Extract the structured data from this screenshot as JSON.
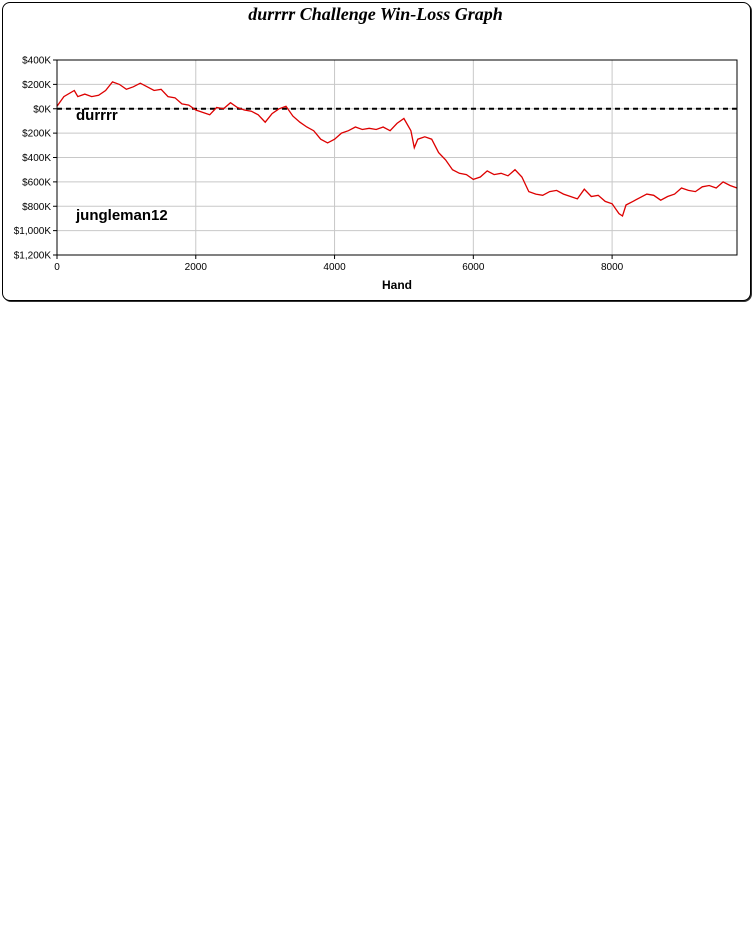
{
  "chart_data": {
    "type": "line",
    "title": "durrrr Challenge Win-Loss Graph",
    "xlabel": "Hand",
    "ylabel": "",
    "xlim": [
      0,
      9800
    ],
    "ylim": [
      -1200000,
      400000
    ],
    "x_ticks": [
      {
        "value": 0,
        "label": "0"
      },
      {
        "value": 2000,
        "label": "2000"
      },
      {
        "value": 4000,
        "label": "4000"
      },
      {
        "value": 6000,
        "label": "6000"
      },
      {
        "value": 8000,
        "label": "8000"
      }
    ],
    "y_ticks": [
      {
        "value": 400000,
        "label": "$400K"
      },
      {
        "value": 200000,
        "label": "$200K"
      },
      {
        "value": 0,
        "label": "$0K"
      },
      {
        "value": -200000,
        "label": "$200K"
      },
      {
        "value": -400000,
        "label": "$400K"
      },
      {
        "value": -600000,
        "label": "$600K"
      },
      {
        "value": -800000,
        "label": "$800K"
      },
      {
        "value": -1000000,
        "label": "$1,000K"
      },
      {
        "value": -1200000,
        "label": "$1,200K"
      }
    ],
    "grid": true,
    "zero_line": true,
    "line_color": "#dd0000",
    "annotations": {
      "top_player": "durrrr",
      "bottom_player": "jungleman12"
    },
    "series": [
      {
        "x": [
          0,
          100,
          250,
          300,
          400,
          500,
          600,
          700,
          800,
          900,
          1000,
          1100,
          1200,
          1300,
          1400,
          1500,
          1600,
          1700,
          1800,
          1900,
          2000,
          2100,
          2200,
          2300,
          2400,
          2500,
          2600,
          2700,
          2800,
          2900,
          3000,
          3100,
          3200,
          3300,
          3400,
          3500,
          3600,
          3700,
          3800,
          3900,
          4000,
          4100,
          4200,
          4300,
          4400,
          4500,
          4600,
          4700,
          4800,
          4900,
          5000,
          5100,
          5150,
          5200,
          5300,
          5400,
          5500,
          5600,
          5700,
          5800,
          5900,
          6000,
          6100,
          6200,
          6300,
          6400,
          6500,
          6600,
          6700,
          6800,
          6900,
          7000,
          7100,
          7200,
          7300,
          7400,
          7500,
          7600,
          7700,
          7800,
          7900,
          8000,
          8100,
          8150,
          8200,
          8300,
          8400,
          8500,
          8600,
          8700,
          8800,
          8900,
          9000,
          9100,
          9200,
          9300,
          9400,
          9500,
          9600,
          9700,
          9800
        ],
        "y": [
          20000,
          100000,
          150000,
          100000,
          120000,
          100000,
          110000,
          150000,
          220000,
          200000,
          160000,
          180000,
          210000,
          180000,
          150000,
          160000,
          100000,
          90000,
          40000,
          30000,
          -10000,
          -30000,
          -50000,
          10000,
          0,
          50000,
          10000,
          -10000,
          -20000,
          -50000,
          -110000,
          -40000,
          0,
          20000,
          -60000,
          -110000,
          -150000,
          -180000,
          -250000,
          -280000,
          -250000,
          -200000,
          -180000,
          -150000,
          -170000,
          -160000,
          -170000,
          -150000,
          -180000,
          -120000,
          -80000,
          -180000,
          -320000,
          -250000,
          -230000,
          -250000,
          -360000,
          -420000,
          -500000,
          -530000,
          -540000,
          -580000,
          -560000,
          -510000,
          -540000,
          -530000,
          -550000,
          -500000,
          -560000,
          -680000,
          -700000,
          -710000,
          -680000,
          -670000,
          -700000,
          -720000,
          -740000,
          -660000,
          -720000,
          -710000,
          -760000,
          -780000,
          -860000,
          -880000,
          -790000,
          -760000,
          -730000,
          -700000,
          -710000,
          -750000,
          -720000,
          -700000,
          -650000,
          -670000,
          -680000,
          -640000,
          -630000,
          -650000,
          -600000,
          -630000,
          -650000
        ]
      }
    ]
  }
}
